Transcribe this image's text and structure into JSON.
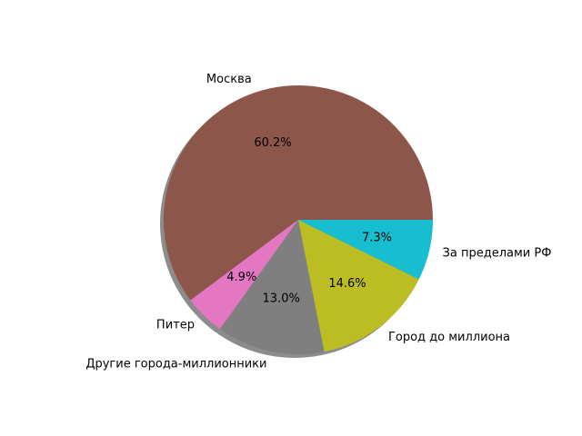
{
  "chart_data": {
    "type": "pie",
    "categories": [
      "Москва",
      "Питер",
      "Другие города-миллионники",
      "Город до миллиона",
      "За пределами РФ"
    ],
    "values": [
      60.2,
      4.9,
      13.0,
      14.6,
      7.3
    ],
    "value_labels": [
      "60.2%",
      "4.9%",
      "13.0%",
      "14.6%",
      "7.3%"
    ],
    "colors": [
      "#8c564b",
      "#e377c2",
      "#7f7f7f",
      "#bcbd22",
      "#17becf"
    ],
    "shadow": true
  }
}
